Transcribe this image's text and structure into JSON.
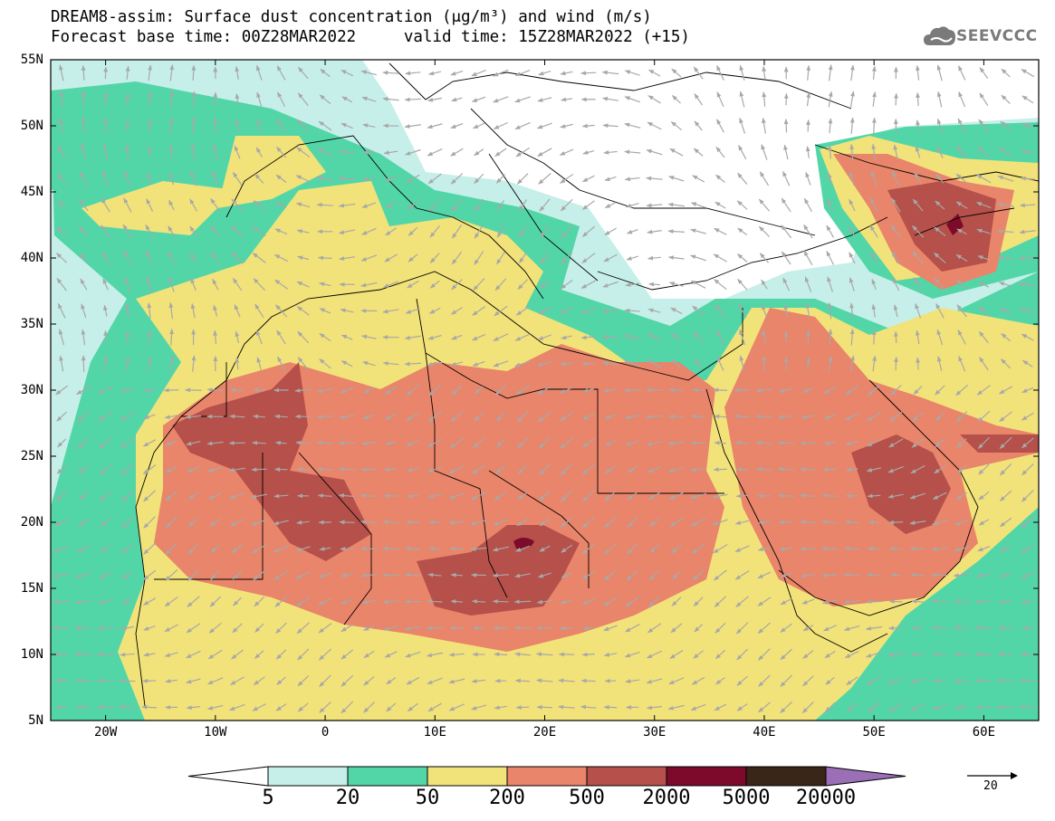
{
  "header": {
    "title_line1": "DREAM8-assim: Surface dust concentration (μg/m³) and wind (m/s)",
    "title_line2": "Forecast base time: 00Z28MAR2022     valid time: 15Z28MAR2022 (+15)",
    "logo_text": "SEEVCCC"
  },
  "map": {
    "lon_range": [
      -25,
      65
    ],
    "lat_range": [
      5,
      55
    ],
    "lat_labels": [
      "55N",
      "50N",
      "45N",
      "40N",
      "35N",
      "30N",
      "25N",
      "20N",
      "15N",
      "10N",
      "5N"
    ],
    "lon_labels": [
      "20W",
      "10W",
      "0",
      "10E",
      "20E",
      "30E",
      "40E",
      "50E",
      "60E"
    ],
    "wind_arrow_color": "#a8a8a8",
    "border_color": "#000000"
  },
  "colorbar": {
    "labels": [
      "5",
      "20",
      "50",
      "200",
      "500",
      "2000",
      "5000",
      "20000"
    ],
    "colors": [
      "#c6efe9",
      "#52d6a8",
      "#f2e27a",
      "#e9856a",
      "#b5504a",
      "#7d0a2a",
      "#3a2519",
      "#9a6fb5"
    ],
    "low_end_color": "#ffffff"
  },
  "reference_vector": {
    "label": "20"
  }
}
